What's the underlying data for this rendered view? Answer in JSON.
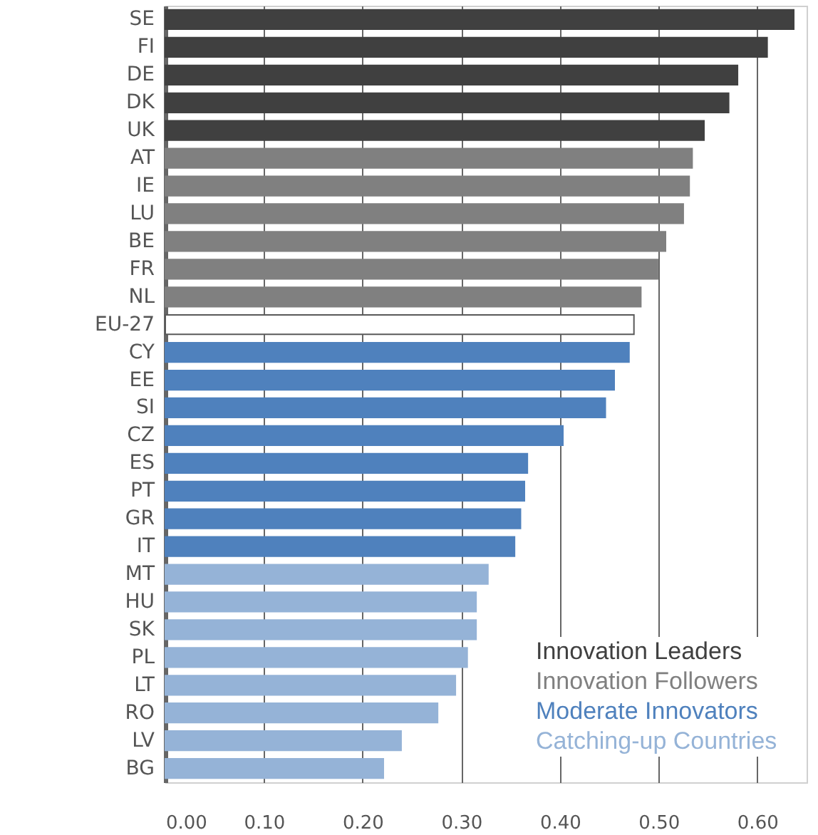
{
  "chart_data": {
    "type": "bar",
    "orientation": "horizontal",
    "categories": [
      "SE",
      "FI",
      "DE",
      "DK",
      "UK",
      "AT",
      "IE",
      "LU",
      "BE",
      "FR",
      "NL",
      "EU-27",
      "CY",
      "EE",
      "SI",
      "CZ",
      "ES",
      "PT",
      "GR",
      "IT",
      "MT",
      "HU",
      "SK",
      "PL",
      "LT",
      "RO",
      "LV",
      "BG"
    ],
    "series": [
      {
        "name": "Innovation Leaders",
        "color": "#404040",
        "values": [
          0.637,
          0.61,
          0.58,
          0.571,
          0.546,
          null,
          null,
          null,
          null,
          null,
          null,
          null,
          null,
          null,
          null,
          null,
          null,
          null,
          null,
          null,
          null,
          null,
          null,
          null,
          null,
          null,
          null,
          null
        ]
      },
      {
        "name": "Innovation Followers",
        "color": "#808080",
        "values": [
          null,
          null,
          null,
          null,
          null,
          0.534,
          0.531,
          0.525,
          0.507,
          0.499,
          0.482,
          null,
          null,
          null,
          null,
          null,
          null,
          null,
          null,
          null,
          null,
          null,
          null,
          null,
          null,
          null,
          null,
          null
        ]
      },
      {
        "color": "#ffffff",
        "values": [
          null,
          null,
          null,
          null,
          null,
          null,
          null,
          null,
          null,
          null,
          null,
          0.475,
          null,
          null,
          null,
          null,
          null,
          null,
          null,
          null,
          null,
          null,
          null,
          null,
          null,
          null,
          null,
          null
        ]
      },
      {
        "name": "Moderate Innovators",
        "color": "#4f81bd",
        "values": [
          null,
          null,
          null,
          null,
          null,
          null,
          null,
          null,
          null,
          null,
          null,
          null,
          0.47,
          0.455,
          0.446,
          0.403,
          0.367,
          0.364,
          0.36,
          0.354,
          null,
          null,
          null,
          null,
          null,
          null,
          null,
          null
        ]
      },
      {
        "name": "Catching-up Countries",
        "color": "#95b3d7",
        "values": [
          null,
          null,
          null,
          null,
          null,
          null,
          null,
          null,
          null,
          null,
          null,
          null,
          null,
          null,
          null,
          null,
          null,
          null,
          null,
          null,
          0.327,
          0.315,
          0.315,
          0.306,
          0.294,
          0.276,
          0.239,
          0.221
        ]
      }
    ],
    "xlim": [
      0,
      0.65
    ],
    "xticks": [
      {
        "value": 0,
        "label": "0.00"
      },
      {
        "value": 0.1,
        "label": "0.10"
      },
      {
        "value": 0.2,
        "label": "0.20"
      },
      {
        "value": 0.3,
        "label": "0.30"
      },
      {
        "value": 0.4,
        "label": "0.40"
      },
      {
        "value": 0.5,
        "label": "0.50"
      },
      {
        "value": 0.6,
        "label": "0.60"
      }
    ],
    "grid": "x",
    "legend": "bottom right"
  }
}
